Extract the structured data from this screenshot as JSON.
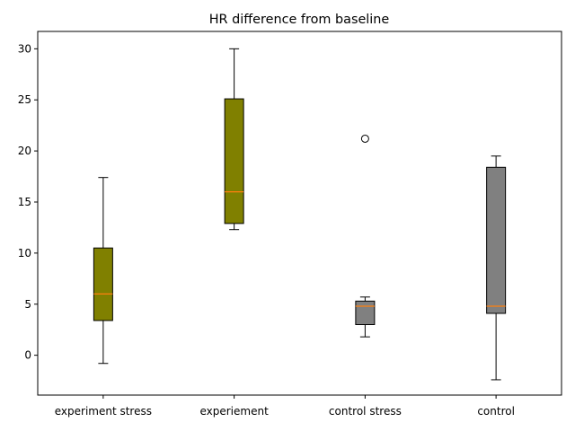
{
  "chart_data": {
    "type": "box",
    "title": "HR difference from baseline",
    "xlabel": "",
    "ylabel": "",
    "ylim": [
      -3.9,
      31.7
    ],
    "yticks": [
      0,
      5,
      10,
      15,
      20,
      25,
      30
    ],
    "grid": false,
    "categories": [
      "experiment stress",
      "experiement",
      "control stress",
      "control"
    ],
    "boxes": [
      {
        "category": "experiment stress",
        "whisker_low": -0.8,
        "q1": 3.4,
        "median": 6.0,
        "q3": 10.5,
        "whisker_high": 17.4,
        "outliers": [],
        "color": "#808000"
      },
      {
        "category": "experiement",
        "whisker_low": 12.3,
        "q1": 12.9,
        "median": 16.0,
        "q3": 25.1,
        "whisker_high": 30.0,
        "outliers": [],
        "color": "#808000"
      },
      {
        "category": "control stress",
        "whisker_low": 1.8,
        "q1": 3.0,
        "median": 4.8,
        "q3": 5.3,
        "whisker_high": 5.7,
        "outliers": [
          21.2
        ],
        "color": "#808080"
      },
      {
        "category": "control",
        "whisker_low": -2.4,
        "q1": 4.1,
        "median": 4.8,
        "q3": 18.4,
        "whisker_high": 19.5,
        "outliers": [],
        "color": "#808080"
      }
    ],
    "median_color": "#ff7f0e"
  }
}
